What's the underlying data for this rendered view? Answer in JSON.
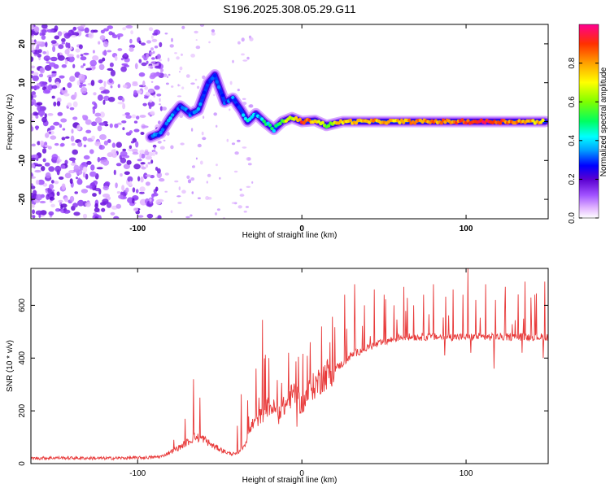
{
  "title": "S196.2025.308.05.29.G11",
  "chart_data": [
    {
      "type": "heatmap",
      "name": "spectrogram",
      "xlabel": "Height of straight line (km)",
      "ylabel": "Frequency (Hz)",
      "xlim": [
        -165,
        150
      ],
      "ylim": [
        -25,
        25
      ],
      "xticks": [
        -100,
        0,
        100
      ],
      "xtick_labels": [
        "-100",
        "0",
        "100"
      ],
      "yticks": [
        -20,
        -10,
        0,
        10,
        20
      ],
      "ytick_labels": [
        "-20",
        "-10",
        "0",
        "10",
        "20"
      ],
      "colorbar": {
        "label": "Normalized spectral amplitude",
        "range": [
          0,
          1
        ],
        "ticks": [
          0,
          0.2,
          0.4,
          0.6,
          0.8
        ],
        "tick_labels": [
          "0.0",
          "0.2",
          "0.4",
          "0.6",
          "0.8"
        ],
        "colors": [
          "#ffffff",
          "#e3b8ff",
          "#a050ff",
          "#5a00d0",
          "#0000ff",
          "#00a0ff",
          "#00ffff",
          "#00ff60",
          "#7fff00",
          "#ffff00",
          "#ffa000",
          "#ff3000",
          "#ff0090"
        ]
      },
      "signal_track": [
        {
          "x": -92,
          "y": -4,
          "amp": 0.28
        },
        {
          "x": -86,
          "y": -3,
          "amp": 0.3
        },
        {
          "x": -80,
          "y": 1,
          "amp": 0.35
        },
        {
          "x": -74,
          "y": 4,
          "amp": 0.3
        },
        {
          "x": -68,
          "y": 2,
          "amp": 0.32
        },
        {
          "x": -63,
          "y": 3,
          "amp": 0.3
        },
        {
          "x": -57,
          "y": 10,
          "amp": 0.28
        },
        {
          "x": -53,
          "y": 12,
          "amp": 0.3
        },
        {
          "x": -47,
          "y": 5,
          "amp": 0.3
        },
        {
          "x": -42,
          "y": 6,
          "amp": 0.32
        },
        {
          "x": -37,
          "y": 3,
          "amp": 0.3
        },
        {
          "x": -33,
          "y": 0,
          "amp": 0.4
        },
        {
          "x": -28,
          "y": 2,
          "amp": 0.35
        },
        {
          "x": -23,
          "y": 0,
          "amp": 0.45
        },
        {
          "x": -17,
          "y": -2,
          "amp": 0.45
        },
        {
          "x": -12,
          "y": 0,
          "amp": 0.6
        },
        {
          "x": -6,
          "y": 1,
          "amp": 0.7
        },
        {
          "x": 0,
          "y": 0,
          "amp": 0.9
        },
        {
          "x": 8,
          "y": 0.3,
          "amp": 0.75
        },
        {
          "x": 15,
          "y": -1,
          "amp": 0.6
        },
        {
          "x": 25,
          "y": 0,
          "amp": 0.75
        },
        {
          "x": 40,
          "y": 0,
          "amp": 0.8
        },
        {
          "x": 55,
          "y": 0,
          "amp": 0.75
        },
        {
          "x": 70,
          "y": 0,
          "amp": 0.85
        },
        {
          "x": 85,
          "y": 0,
          "amp": 0.8
        },
        {
          "x": 100,
          "y": 0,
          "amp": 0.9
        },
        {
          "x": 115,
          "y": 0,
          "amp": 0.95
        },
        {
          "x": 130,
          "y": 0,
          "amp": 0.8
        },
        {
          "x": 148,
          "y": 0,
          "amp": 0.75
        }
      ]
    },
    {
      "type": "line",
      "name": "snr",
      "xlabel": "Height of straight line (km)",
      "ylabel": "SNR (10 * v/v)",
      "xlim": [
        -165,
        150
      ],
      "ylim": [
        0,
        740
      ],
      "xticks": [
        -100,
        0,
        100
      ],
      "xtick_labels": [
        "-100",
        "0",
        "100"
      ],
      "yticks": [
        0,
        200,
        400,
        600
      ],
      "ytick_labels": [
        "0",
        "200",
        "400",
        "600"
      ],
      "color": "#e83a3a",
      "x": [
        -165,
        -150,
        -120,
        -100,
        -90,
        -85,
        -80,
        -75,
        -70,
        -65,
        -60,
        -55,
        -50,
        -45,
        -40,
        -35,
        -30,
        -25,
        -20,
        -15,
        -10,
        -5,
        0,
        5,
        10,
        15,
        20,
        25,
        30,
        40,
        50,
        60,
        80,
        100,
        120,
        150
      ],
      "y": [
        20,
        22,
        20,
        22,
        24,
        28,
        45,
        60,
        80,
        100,
        95,
        70,
        55,
        40,
        35,
        70,
        150,
        180,
        220,
        200,
        220,
        270,
        220,
        280,
        310,
        340,
        360,
        380,
        410,
        440,
        460,
        480,
        480,
        480,
        480,
        480
      ],
      "spikes": [
        {
          "x": -78,
          "y": 90
        },
        {
          "x": -71,
          "y": 170
        },
        {
          "x": -66,
          "y": 320
        },
        {
          "x": -62,
          "y": 250
        },
        {
          "x": -33,
          "y": 240
        },
        {
          "x": -28,
          "y": 360
        },
        {
          "x": -26,
          "y": 250
        },
        {
          "x": -24,
          "y": 545
        },
        {
          "x": -20,
          "y": 400
        },
        {
          "x": -14,
          "y": 490
        },
        {
          "x": -8,
          "y": 420
        },
        {
          "x": -3,
          "y": 430
        },
        {
          "x": 5,
          "y": 460
        },
        {
          "x": 12,
          "y": 520
        },
        {
          "x": 20,
          "y": 600
        },
        {
          "x": 26,
          "y": 640
        },
        {
          "x": 32,
          "y": 680
        },
        {
          "x": 38,
          "y": 600
        },
        {
          "x": 44,
          "y": 660
        },
        {
          "x": 50,
          "y": 640
        },
        {
          "x": 56,
          "y": 600
        },
        {
          "x": 62,
          "y": 670
        },
        {
          "x": 68,
          "y": 600
        },
        {
          "x": 74,
          "y": 640
        },
        {
          "x": 80,
          "y": 680
        },
        {
          "x": 86,
          "y": 610
        },
        {
          "x": 92,
          "y": 660
        },
        {
          "x": 98,
          "y": 640
        },
        {
          "x": 101,
          "y": 740
        },
        {
          "x": 106,
          "y": 620
        },
        {
          "x": 112,
          "y": 680
        },
        {
          "x": 118,
          "y": 620
        },
        {
          "x": 124,
          "y": 670
        },
        {
          "x": 130,
          "y": 630
        },
        {
          "x": 136,
          "y": 690
        },
        {
          "x": 142,
          "y": 640
        },
        {
          "x": 148,
          "y": 690
        }
      ],
      "dips": [
        {
          "x": -14,
          "y": 150
        },
        {
          "x": -3,
          "y": 140
        },
        {
          "x": 18,
          "y": 300
        },
        {
          "x": 87,
          "y": 410
        },
        {
          "x": 103,
          "y": 420
        },
        {
          "x": 117,
          "y": 360
        },
        {
          "x": 134,
          "y": 420
        },
        {
          "x": 147,
          "y": 400
        }
      ]
    }
  ]
}
